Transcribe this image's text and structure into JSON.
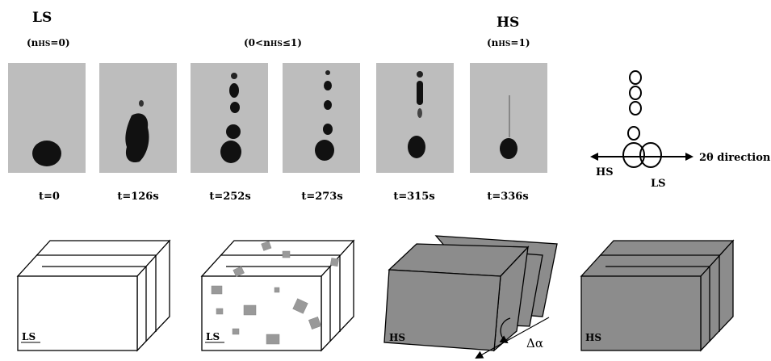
{
  "headers": {
    "ls_title": "LS",
    "ls_sub_pre": "(n",
    "ls_sub_idx": "HS",
    "ls_sub_post": "=0)",
    "mid_sub_pre": "(0<n",
    "mid_sub_idx": "HS",
    "mid_sub_post": "≤1)",
    "hs_title": "HS",
    "hs_sub_pre": "(n",
    "hs_sub_idx": "HS",
    "hs_sub_post": "=1)"
  },
  "times": [
    "t=0",
    "t=126s",
    "t=252s",
    "t=273s",
    "t=315s",
    "t=336s"
  ],
  "schematic": {
    "direction_label": "2θ direction",
    "hs_label": "HS",
    "ls_label": "LS"
  },
  "crystals": {
    "labels": [
      "LS",
      "LS",
      "HS",
      "HS"
    ],
    "angle_label": "Δα"
  },
  "colors": {
    "panel_bg": "#bdbdbd",
    "spot": "#111111",
    "crystal_hs": "#8c8c8c",
    "crystal_ls": "#ffffff",
    "domain": "#999999"
  }
}
